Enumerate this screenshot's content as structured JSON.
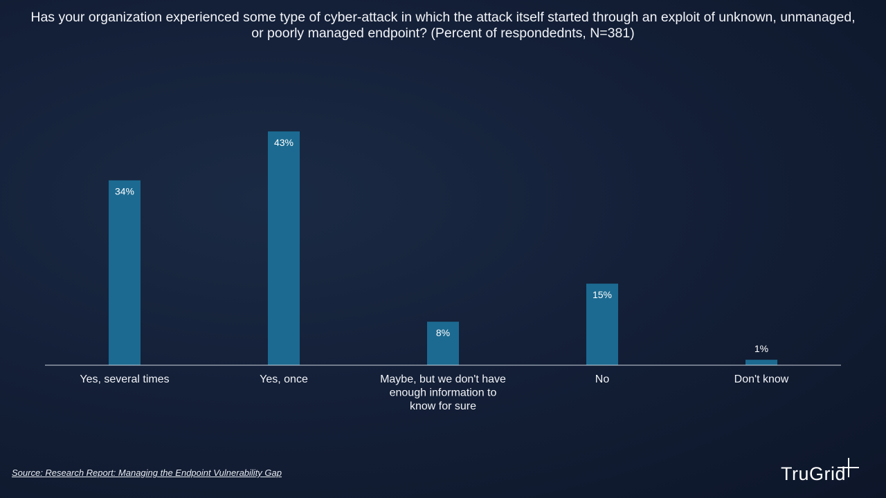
{
  "title": "Has your organization experienced some type of cyber-attack in which the attack itself started through an exploit of unknown, unmanaged, or poorly managed endpoint? (Percent of respondednts, N=381)",
  "source": "Source: Research Report: Managing the Endpoint Vulnerability Gap",
  "logo": {
    "text": "TruGrid"
  },
  "colors": {
    "bar": "#1c6a91",
    "axis": "#cfd6e0",
    "label": "#ffffff"
  },
  "chart_data": {
    "type": "bar",
    "categories": [
      [
        "Yes, several times"
      ],
      [
        "Yes, once"
      ],
      [
        "Maybe, but we don't have",
        "enough information to",
        "know for sure"
      ],
      [
        "No"
      ],
      [
        "Don't know"
      ]
    ],
    "values": [
      34,
      43,
      8,
      15,
      1
    ],
    "data_labels": [
      "34%",
      "43%",
      "8%",
      "15%",
      "1%"
    ],
    "ylim": [
      0,
      43
    ],
    "grid": false,
    "legend": "none"
  }
}
